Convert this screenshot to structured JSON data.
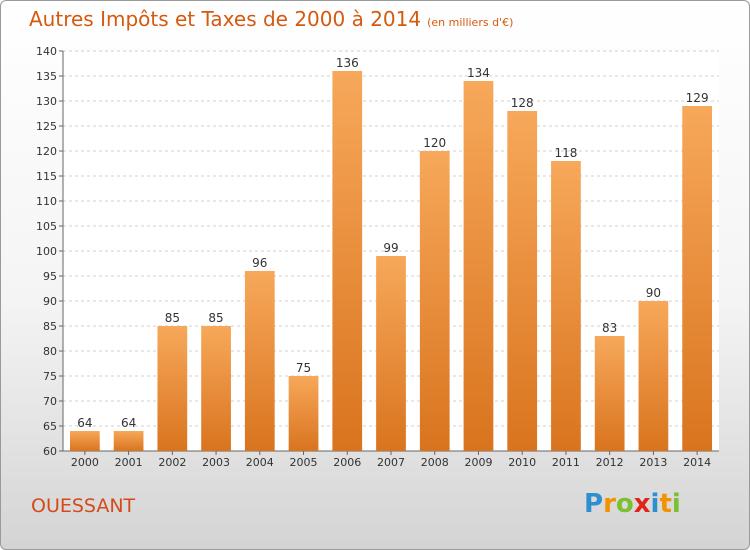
{
  "title": "Autres Impôts et Taxes de 2000 à 2014",
  "title_unit": "(en milliers d'€)",
  "commune": "OUESSANT",
  "logo": {
    "letters": [
      "P",
      "r",
      "o",
      "x",
      "i",
      "t",
      "i"
    ],
    "colors": [
      "#2e8fd0",
      "#f39200",
      "#7cbf2f",
      "#e2231a",
      "#2e8fd0",
      "#f39200",
      "#7cbf2f"
    ]
  },
  "colors": {
    "title": "#d55a10",
    "bar_light": "#f7a85a",
    "bar_dark": "#d9741e",
    "grid": "#d0d0d0"
  },
  "chart_data": {
    "type": "bar",
    "categories": [
      "2000",
      "2001",
      "2002",
      "2003",
      "2004",
      "2005",
      "2006",
      "2007",
      "2008",
      "2009",
      "2010",
      "2011",
      "2012",
      "2013",
      "2014"
    ],
    "values": [
      64,
      64,
      85,
      85,
      96,
      75,
      136,
      99,
      120,
      134,
      128,
      118,
      83,
      90,
      129
    ],
    "ylim": [
      60,
      140
    ],
    "yticks": [
      60,
      65,
      70,
      75,
      80,
      85,
      90,
      95,
      100,
      105,
      110,
      115,
      120,
      125,
      130,
      135,
      140
    ],
    "grid": true,
    "data_labels": true
  }
}
